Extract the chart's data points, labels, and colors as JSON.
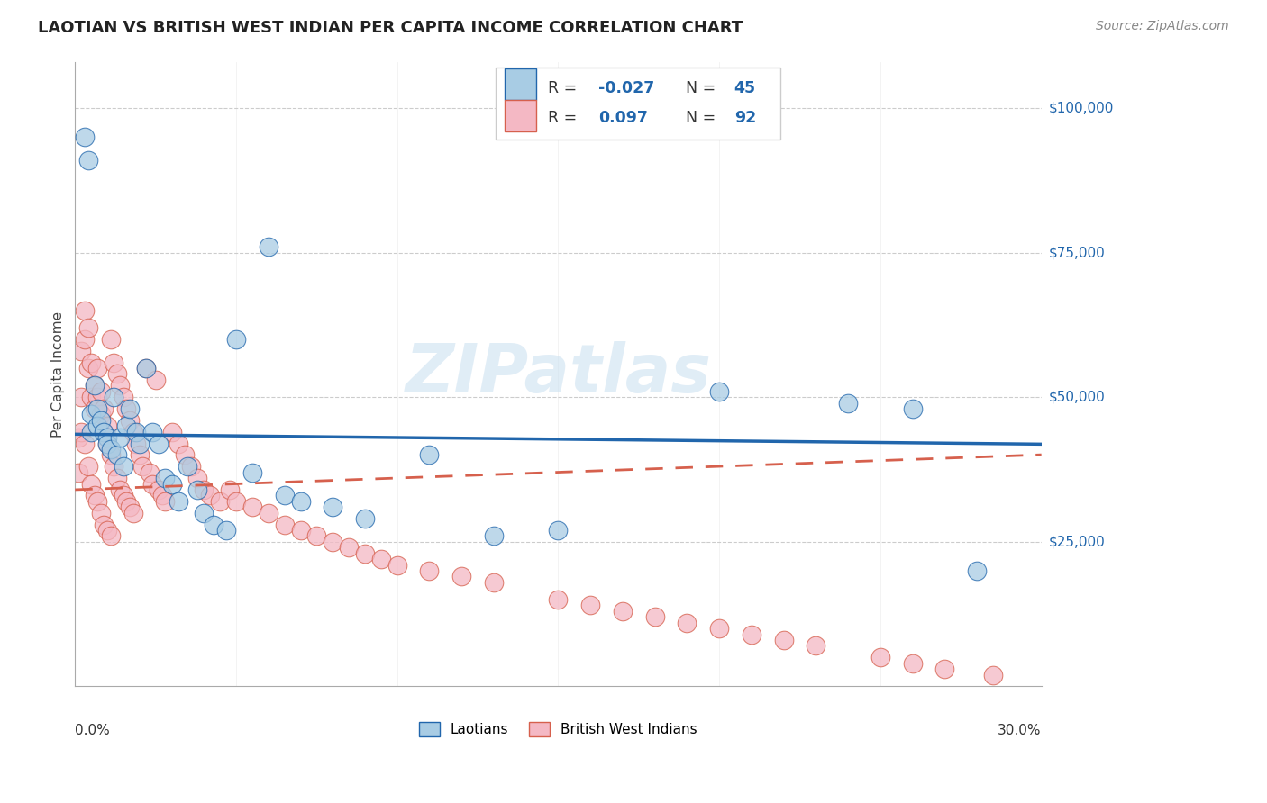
{
  "title": "LAOTIAN VS BRITISH WEST INDIAN PER CAPITA INCOME CORRELATION CHART",
  "source": "Source: ZipAtlas.com",
  "ylabel": "Per Capita Income",
  "xmin": 0.0,
  "xmax": 0.3,
  "ymin": 0,
  "ymax": 108000,
  "color_blue": "#a8cce4",
  "color_pink": "#f4b8c4",
  "color_blue_line": "#2166ac",
  "color_pink_line": "#d6604d",
  "color_grid": "#cccccc",
  "watermark": "ZIPatlas",
  "ytick_vals": [
    25000,
    50000,
    75000,
    100000
  ],
  "ytick_labels": [
    "$25,000",
    "$50,000",
    "$75,000",
    "$100,000"
  ],
  "lao_r": -0.027,
  "lao_n": 45,
  "bwi_r": 0.097,
  "bwi_n": 92
}
